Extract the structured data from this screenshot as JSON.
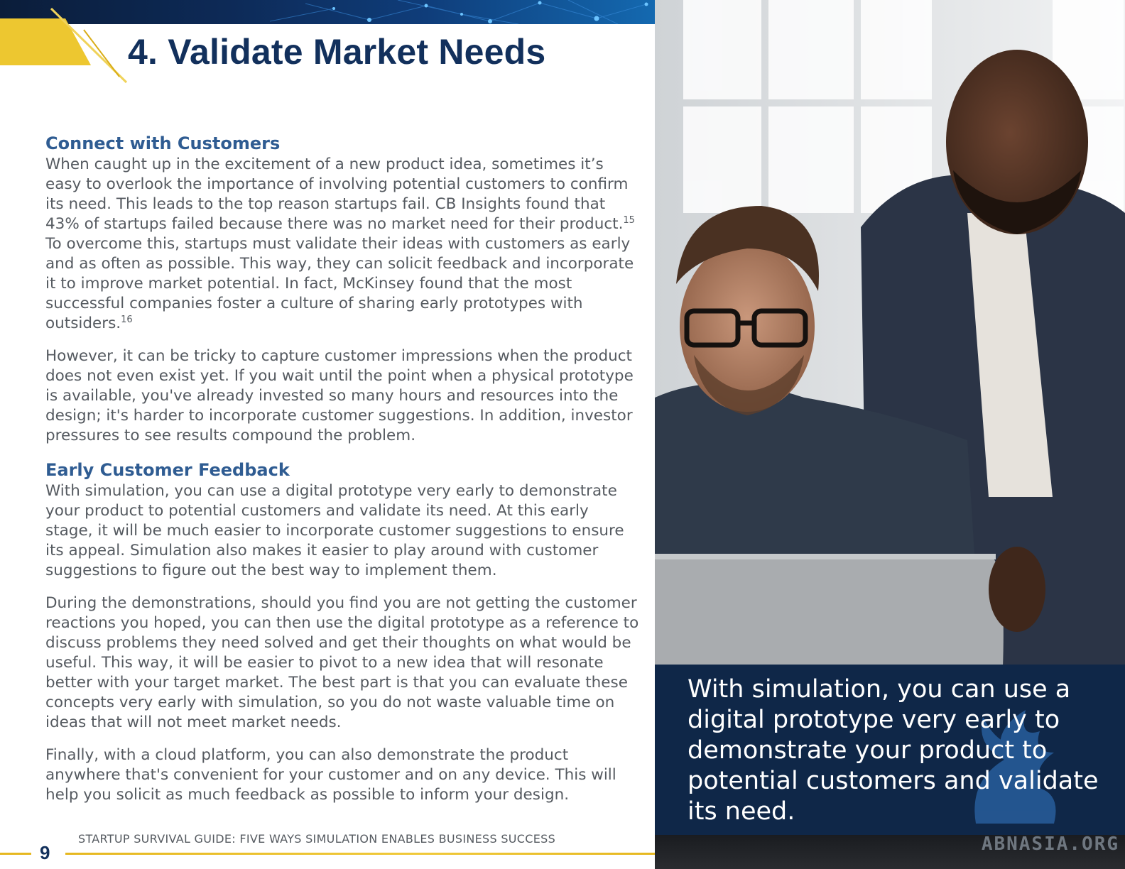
{
  "page": {
    "title": "4. Validate Market Needs",
    "number": "9",
    "footer": "STARTUP SURVIVAL GUIDE: FIVE WAYS SIMULATION ENABLES BUSINESS SUCCESS"
  },
  "sections": [
    {
      "heading": "Connect with Customers",
      "p1_before_sup": "When caught up in the excitement of a new product idea, sometimes it’s easy to overlook the importance of involving potential customers to confirm its need. This leads to the top reason startups fail. CB Insights found that 43% of startups failed because there was no market need for their product.",
      "p1_sup1": "15",
      "p1_middle": " To overcome this, startups must validate their ideas with customers as early and as often as possible. This way, they can solicit feedback and incorporate it to improve market potential. In fact, McKinsey found that the most successful companies foster a culture of sharing early prototypes with outsiders.",
      "p1_sup2": "16",
      "p2": "However, it can be tricky to capture customer impressions when the product does not even exist yet. If you wait until the point when a physical prototype is available, you've already invested so many hours and resources into the design; it's harder to incorporate customer suggestions. In addition, investor pressures to see results compound the problem."
    },
    {
      "heading": "Early Customer Feedback",
      "p1": "With simulation, you can use a digital prototype very early to demonstrate your product to potential customers and validate its need. At this early stage, it will be much easier to incorporate customer suggestions to ensure its appeal. Simulation also makes it easier to play around with customer suggestions to figure out the best way to implement them.",
      "p2": "During the demonstrations, should you find you are not getting the customer reactions you hoped, you can then use the digital prototype as a reference to discuss problems they need solved and get their thoughts on what would be useful. This way, it will be easier to pivot to a new idea that will resonate better with your target market. The best part is that you can evaluate these concepts very early with simulation, so you do not waste valuable time on ideas that will not meet market needs.",
      "p3": "Finally, with a cloud platform, you can also demonstrate the product anywhere that's convenient for your customer and on any device. This will help you solicit as much feedback as possible to inform your design."
    }
  ],
  "callout": {
    "text": "With simulation, you can use a digital prototype very early to demonstrate your product to potential customers and validate its need."
  },
  "watermark": {
    "text": "ABNASIA.ORG",
    "icon": "griffin-logo-icon"
  },
  "photo": {
    "icon": "two-men-at-laptop-photo"
  },
  "colors": {
    "title": "#12305c",
    "subhead": "#2f5c92",
    "body": "#555a60",
    "accent_gold": "#e6b820",
    "callout_bg": "#0f2748"
  }
}
